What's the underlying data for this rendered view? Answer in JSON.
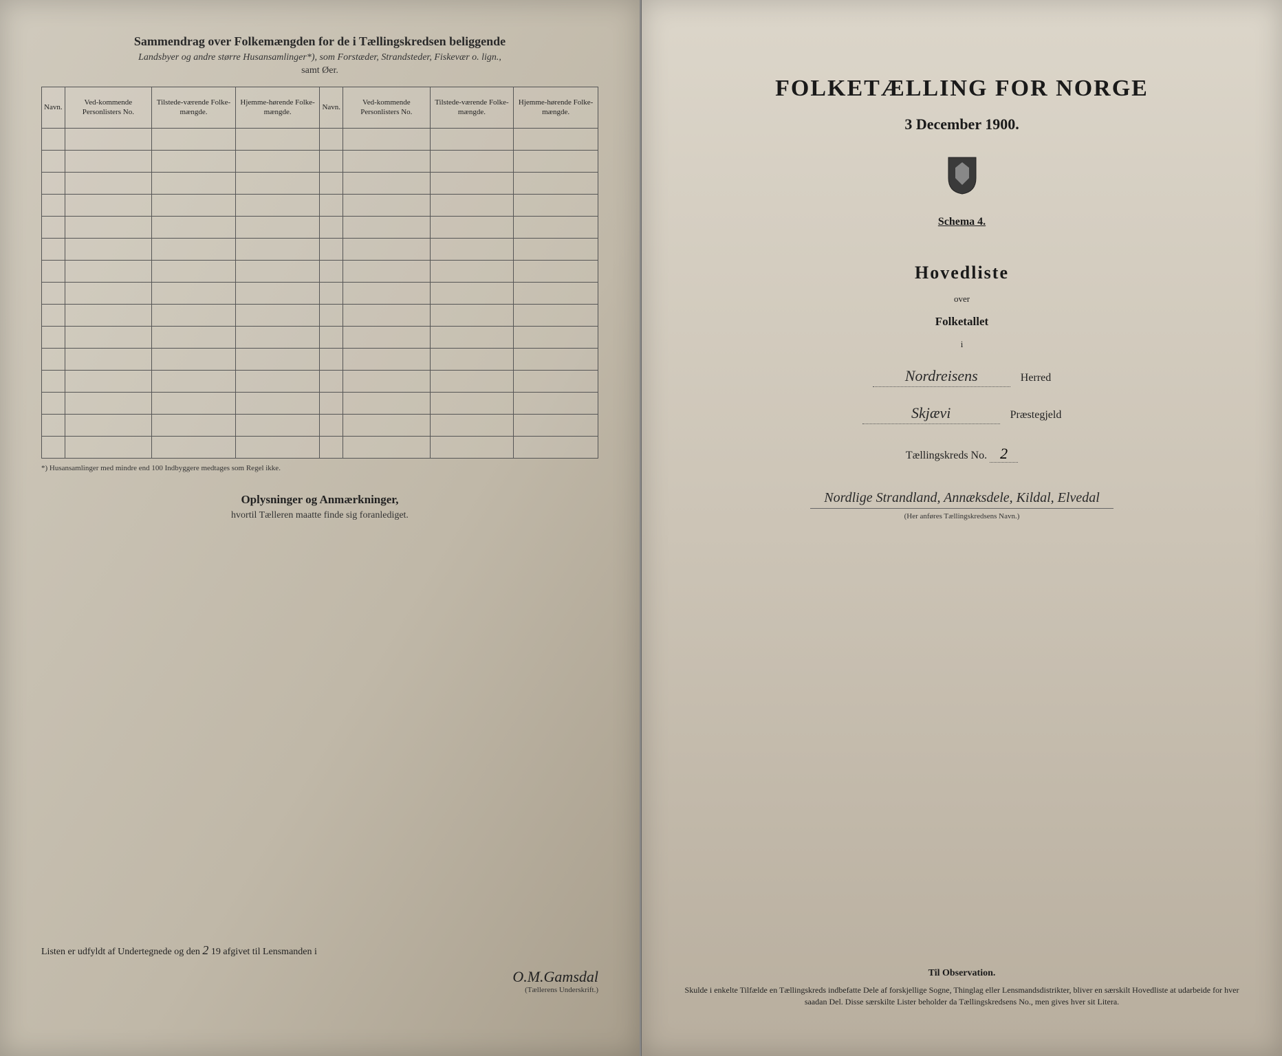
{
  "left": {
    "header_title": "Sammendrag over Folkemængden for de i Tællingskredsen beliggende",
    "header_subtitle": "Landsbyer og andre større Husansamlinger*), som Forstæder, Strandsteder, Fiskevær o. lign.,",
    "header_note": "samt Øer.",
    "columns": [
      "Navn.",
      "Ved-kommende Personlisters No.",
      "Tilstede-værende Folke-mængde.",
      "Hjemme-hørende Folke-mængde.",
      "Navn.",
      "Ved-kommende Personlisters No.",
      "Tilstede-værende Folke-mængde.",
      "Hjemme-hørende Folke-mængde."
    ],
    "row_count": 15,
    "footnote": "*) Husansamlinger med mindre end 100 Indbyggere medtages som Regel ikke.",
    "mid_title": "Oplysninger og Anmærkninger,",
    "mid_sub": "hvortil Tælleren maatte finde sig foranlediget.",
    "sig_text_1": "Listen er udfyldt af Undertegnede og den",
    "sig_day": "2",
    "sig_text_2": "19       afgivet til Lensmanden i",
    "signature": "O.M.Gamsdal",
    "sig_label": "(Tællerens Underskrift.)"
  },
  "right": {
    "title": "FOLKETÆLLING FOR NORGE",
    "date": "3 December 1900.",
    "schema": "Schema 4.",
    "hovedliste": "Hovedliste",
    "over": "over",
    "folketallet": "Folketallet",
    "i": "i",
    "herred_value": "Nordreisens",
    "herred_label": "Herred",
    "prestegjeld_value": "Skjævi",
    "prestegjeld_label": "Præstegjeld",
    "kreds_label": "Tællingskreds No.",
    "kreds_no": "2",
    "long_hand": "Nordlige Strandland, Annæksdele, Kildal, Elvedal",
    "anfores": "(Her anføres Tællingskredsens Navn.)",
    "obs_title": "Til Observation.",
    "obs_text": "Skulde i enkelte Tilfælde en Tællingskreds indbefatte Dele af forskjellige Sogne, Thinglag eller Lensmandsdistrikter, bliver en særskilt Hovedliste at udarbeide for hver saadan Del. Disse særskilte Lister beholder da Tællingskredsens No., men gives hver sit Litera."
  },
  "colors": {
    "page_bg": "#d8d2c8",
    "text": "#1a1a1a",
    "border": "#555555"
  }
}
